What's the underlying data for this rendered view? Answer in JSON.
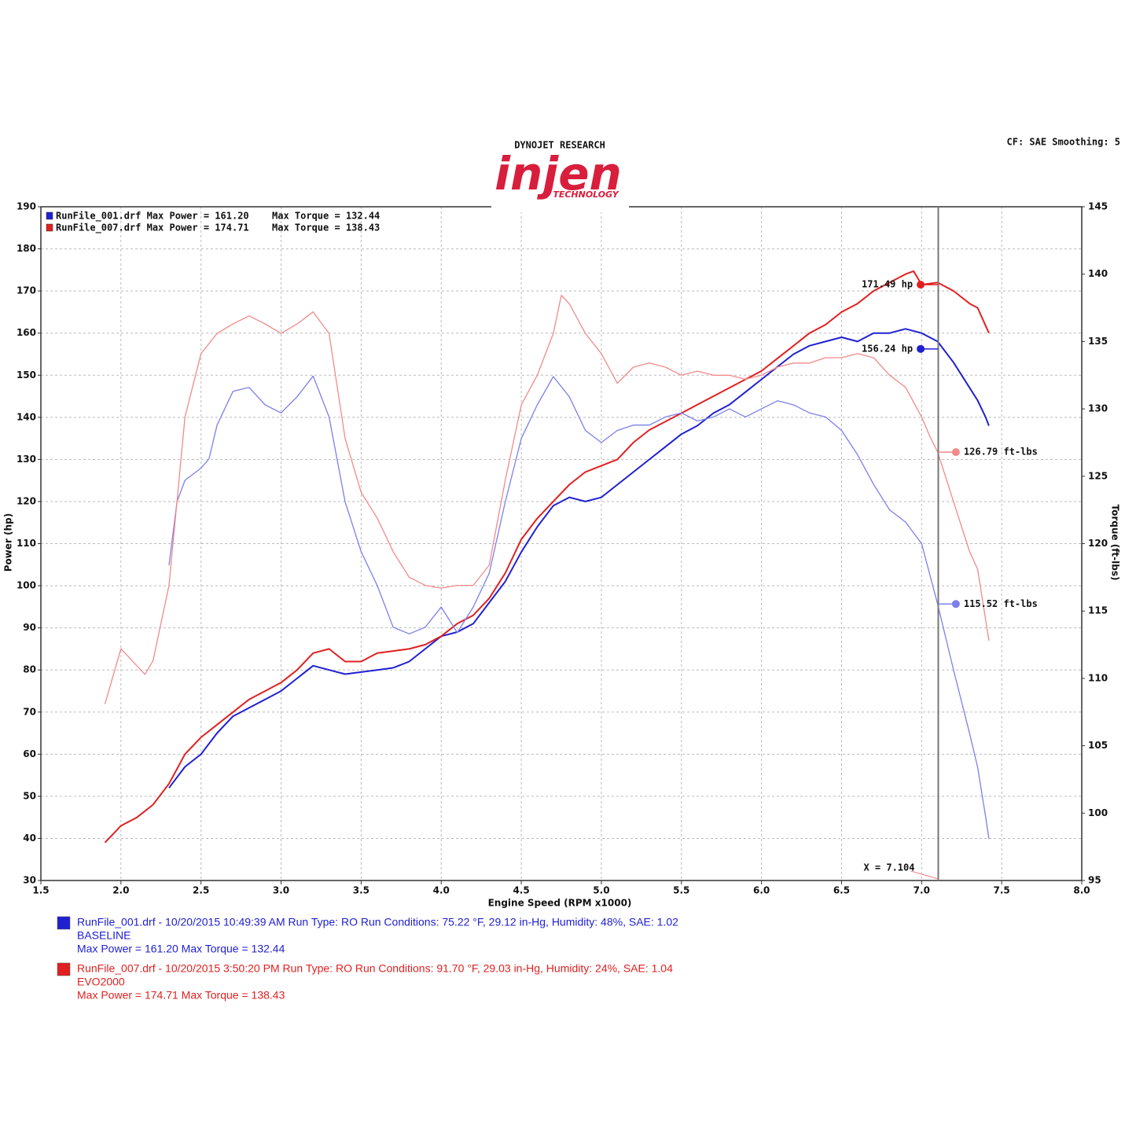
{
  "chart_data": {
    "type": "line",
    "header": "DYNOJET RESEARCH",
    "logo": "injen",
    "logo_sub": "TECHNOLOGY",
    "settings": "CF: SAE  Smoothing: 5",
    "xlabel": "Engine Speed (RPM x1000)",
    "ylabel": "Power (hp)",
    "y2label": "Torque (ft-lbs)",
    "xlim": [
      1.5,
      8.0
    ],
    "xticks": [
      1.5,
      {
        "value": 2,
        "label": "2.0"
      },
      2.5,
      {
        "value": 3,
        "label": "3.0"
      },
      3.5,
      {
        "value": 4,
        "label": "4.0"
      },
      4.5,
      {
        "value": 5,
        "label": "5.0"
      },
      5.5,
      {
        "value": 6,
        "label": "6.0"
      },
      6.5,
      {
        "value": 7,
        "label": "7.0"
      },
      7.5,
      {
        "value": 8,
        "label": "8.0"
      }
    ],
    "ylim": [
      30,
      190
    ],
    "yticks": [
      30,
      40,
      50,
      60,
      70,
      80,
      90,
      100,
      110,
      120,
      130,
      140,
      150,
      160,
      170,
      180,
      190
    ],
    "y2lim": [
      95,
      145
    ],
    "y2ticks": [
      95,
      100,
      105,
      110,
      115,
      120,
      125,
      130,
      135,
      140,
      145
    ],
    "grid": true,
    "legend": [
      {
        "text": "RunFile_001.drf Max Power = 161.20",
        "torque": "Max Torque = 132.44",
        "color": "#2020d0"
      },
      {
        "text": "RunFile_007.drf Max Power = 174.71",
        "torque": "Max Torque = 138.43",
        "color": "#e02020"
      }
    ],
    "series": [
      {
        "color": "#2020d0",
        "width": 2,
        "x": [
          2.3,
          2.4,
          2.5,
          2.6,
          2.7,
          2.8,
          2.9,
          3.0,
          3.1,
          3.2,
          3.3,
          3.4,
          3.5,
          3.6,
          3.7,
          3.8,
          3.9,
          4.0,
          4.1,
          4.2,
          4.3,
          4.4,
          4.5,
          4.6,
          4.7,
          4.8,
          4.9,
          5.0,
          5.1,
          5.2,
          5.3,
          5.4,
          5.5,
          5.6,
          5.7,
          5.8,
          5.9,
          6.0,
          6.1,
          6.2,
          6.3,
          6.4,
          6.5,
          6.6,
          6.7,
          6.8,
          6.9,
          7.0,
          7.1,
          7.2,
          7.3,
          7.35,
          7.4,
          7.42
        ],
        "values": [
          52,
          57,
          60,
          65,
          69,
          71,
          73,
          75,
          78,
          81,
          80,
          79,
          79.5,
          80,
          80.5,
          82,
          85,
          88,
          89,
          91,
          96,
          101,
          108,
          114,
          119,
          121,
          120,
          121,
          124,
          127,
          130,
          133,
          136,
          138,
          141,
          143,
          146,
          149,
          152,
          155,
          157,
          158,
          159,
          158,
          160,
          160,
          161,
          160,
          158,
          153,
          147,
          144,
          140,
          138
        ]
      },
      {
        "color": "#e02020",
        "width": 2,
        "x": [
          1.9,
          2.0,
          2.1,
          2.2,
          2.3,
          2.4,
          2.5,
          2.6,
          2.7,
          2.8,
          2.9,
          3.0,
          3.1,
          3.2,
          3.3,
          3.4,
          3.5,
          3.6,
          3.7,
          3.8,
          3.9,
          4.0,
          4.1,
          4.2,
          4.3,
          4.4,
          4.5,
          4.6,
          4.7,
          4.8,
          4.9,
          5.0,
          5.1,
          5.2,
          5.3,
          5.4,
          5.5,
          5.6,
          5.7,
          5.8,
          5.9,
          6.0,
          6.1,
          6.2,
          6.3,
          6.4,
          6.5,
          6.6,
          6.7,
          6.8,
          6.9,
          6.95,
          7.0,
          7.1,
          7.2,
          7.3,
          7.35,
          7.42
        ],
        "values": [
          39,
          43,
          45,
          48,
          53,
          60,
          64,
          67,
          70,
          73,
          75,
          77,
          80,
          84,
          85,
          82,
          82,
          84,
          84.5,
          85,
          86,
          88,
          91,
          93,
          97,
          103,
          111,
          116,
          120,
          124,
          127,
          128.5,
          130,
          134,
          137,
          139,
          141,
          143,
          145,
          147,
          149,
          151,
          154,
          157,
          160,
          162,
          165,
          167,
          170,
          172,
          174,
          174.71,
          171.5,
          172,
          170,
          167,
          166,
          160
        ]
      },
      {
        "color": "#7b80ea",
        "width": 1.3,
        "axis": "y2",
        "x": [
          2.3,
          2.35,
          2.4,
          2.5,
          2.55,
          2.6,
          2.7,
          2.8,
          2.9,
          3.0,
          3.1,
          3.2,
          3.3,
          3.4,
          3.5,
          3.6,
          3.7,
          3.8,
          3.9,
          4.0,
          4.1,
          4.2,
          4.3,
          4.4,
          4.5,
          4.6,
          4.7,
          4.8,
          4.9,
          5.0,
          5.1,
          5.2,
          5.3,
          5.4,
          5.5,
          5.6,
          5.7,
          5.8,
          5.9,
          6.0,
          6.1,
          6.2,
          6.3,
          6.4,
          6.5,
          6.6,
          6.7,
          6.8,
          6.9,
          7.0,
          7.1,
          7.2,
          7.3,
          7.35,
          7.4,
          7.42
        ],
        "values": [
          118.4,
          123.1,
          124.7,
          125.6,
          126.3,
          128.8,
          131.3,
          131.6,
          130.3,
          129.7,
          130.9,
          132.44,
          129.4,
          123.1,
          119.4,
          116.9,
          113.8,
          113.3,
          113.8,
          115.3,
          113.4,
          115.3,
          117.8,
          123.1,
          127.8,
          130.3,
          132.4,
          130.9,
          128.4,
          127.5,
          128.4,
          128.8,
          128.8,
          129.4,
          129.7,
          129.1,
          129.4,
          130.0,
          129.4,
          130.0,
          130.6,
          130.3,
          129.7,
          129.4,
          128.4,
          126.6,
          124.4,
          122.5,
          121.6,
          120.0,
          115.5,
          110.6,
          105.9,
          103.4,
          99.7,
          98.1
        ]
      },
      {
        "color": "#f28a8a",
        "width": 1.3,
        "axis": "y2",
        "x": [
          1.9,
          2.0,
          2.15,
          2.2,
          2.3,
          2.4,
          2.5,
          2.6,
          2.7,
          2.8,
          2.9,
          3.0,
          3.1,
          3.2,
          3.3,
          3.4,
          3.5,
          3.6,
          3.7,
          3.8,
          3.9,
          4.0,
          4.1,
          4.2,
          4.3,
          4.4,
          4.5,
          4.6,
          4.7,
          4.75,
          4.8,
          4.9,
          5.0,
          5.1,
          5.2,
          5.3,
          5.4,
          5.5,
          5.6,
          5.7,
          5.8,
          5.9,
          6.0,
          6.1,
          6.2,
          6.3,
          6.4,
          6.5,
          6.6,
          6.7,
          6.8,
          6.9,
          7.0,
          7.05,
          7.1,
          7.2,
          7.3,
          7.35,
          7.42
        ],
        "values": [
          108.1,
          112.2,
          110.3,
          111.3,
          116.9,
          129.4,
          134.1,
          135.6,
          136.3,
          136.9,
          136.3,
          135.6,
          136.3,
          137.2,
          135.6,
          127.8,
          123.8,
          121.9,
          119.4,
          117.5,
          116.9,
          116.7,
          116.9,
          116.9,
          118.4,
          124.7,
          130.3,
          132.5,
          135.6,
          138.43,
          137.8,
          135.6,
          134.1,
          131.9,
          133.1,
          133.4,
          133.1,
          132.5,
          132.8,
          132.5,
          132.5,
          132.2,
          132.5,
          133.1,
          133.4,
          133.4,
          133.8,
          133.8,
          134.1,
          133.8,
          132.5,
          131.6,
          129.4,
          128.0,
          126.8,
          123.1,
          119.4,
          118.1,
          112.8
        ]
      }
    ],
    "cursor": {
      "x": 7.104,
      "label": "X = 7.104"
    },
    "readouts": [
      {
        "label": "171.49 hp",
        "value": 171.49,
        "series": 1
      },
      {
        "label": "156.24 hp",
        "value": 156.24,
        "series": 0
      },
      {
        "label": "126.79 ft-lbs",
        "value": 126.79,
        "series": 3,
        "axis": "y2"
      },
      {
        "label": "115.52 ft-lbs",
        "value": 115.52,
        "series": 2,
        "axis": "y2"
      }
    ],
    "runs": [
      {
        "color": "#2020d0",
        "lines": [
          "RunFile_001.drf - 10/20/2015 10:49:39 AM  Run Type: RO  Run Conditions: 75.22 °F, 29.12 in-Hg,  Humidity:  48%, SAE: 1.02",
          "BASELINE",
          "Max Power = 161.20  Max Torque = 132.44"
        ]
      },
      {
        "color": "#e02020",
        "lines": [
          "RunFile_007.drf - 10/20/2015 3:50:20 PM  Run Type: RO  Run Conditions: 91.70 °F, 29.03 in-Hg,  Humidity:  24%, SAE: 1.04",
          "EVO2000",
          "Max Power = 174.71  Max Torque = 138.43"
        ]
      }
    ]
  }
}
